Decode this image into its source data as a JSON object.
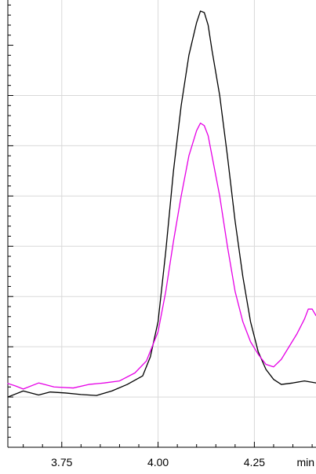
{
  "chart_data": {
    "type": "line",
    "title": "",
    "xlabel": "",
    "ylabel": "",
    "x_unit": "min",
    "xlim": [
      3.61,
      4.41
    ],
    "ylim": [
      0,
      0.89
    ],
    "x_ticks": [
      3.75,
      4.0,
      4.25
    ],
    "y_ticks": [
      0.1,
      0.2,
      0.3,
      0.4,
      0.5,
      0.6,
      0.7
    ],
    "grid": true,
    "legend": "none",
    "series": [
      {
        "color": "#000000",
        "points": [
          [
            3.61,
            0.1
          ],
          [
            3.65,
            0.112
          ],
          [
            3.69,
            0.104
          ],
          [
            3.72,
            0.11
          ],
          [
            3.76,
            0.108
          ],
          [
            3.8,
            0.105
          ],
          [
            3.84,
            0.103
          ],
          [
            3.88,
            0.112
          ],
          [
            3.92,
            0.125
          ],
          [
            3.96,
            0.142
          ],
          [
            3.98,
            0.18
          ],
          [
            4.0,
            0.25
          ],
          [
            4.02,
            0.39
          ],
          [
            4.04,
            0.55
          ],
          [
            4.06,
            0.68
          ],
          [
            4.08,
            0.78
          ],
          [
            4.1,
            0.845
          ],
          [
            4.11,
            0.868
          ],
          [
            4.12,
            0.865
          ],
          [
            4.13,
            0.84
          ],
          [
            4.14,
            0.79
          ],
          [
            4.16,
            0.7
          ],
          [
            4.18,
            0.58
          ],
          [
            4.2,
            0.45
          ],
          [
            4.22,
            0.34
          ],
          [
            4.24,
            0.25
          ],
          [
            4.26,
            0.19
          ],
          [
            4.28,
            0.155
          ],
          [
            4.3,
            0.135
          ],
          [
            4.32,
            0.125
          ],
          [
            4.35,
            0.128
          ],
          [
            4.38,
            0.132
          ],
          [
            4.41,
            0.128
          ]
        ]
      },
      {
        "color": "#e600e6",
        "points": [
          [
            3.61,
            0.127
          ],
          [
            3.63,
            0.122
          ],
          [
            3.65,
            0.116
          ],
          [
            3.69,
            0.128
          ],
          [
            3.73,
            0.12
          ],
          [
            3.78,
            0.118
          ],
          [
            3.82,
            0.125
          ],
          [
            3.86,
            0.128
          ],
          [
            3.9,
            0.132
          ],
          [
            3.94,
            0.148
          ],
          [
            3.97,
            0.172
          ],
          [
            4.0,
            0.23
          ],
          [
            4.02,
            0.31
          ],
          [
            4.04,
            0.41
          ],
          [
            4.06,
            0.5
          ],
          [
            4.08,
            0.58
          ],
          [
            4.1,
            0.63
          ],
          [
            4.11,
            0.645
          ],
          [
            4.12,
            0.64
          ],
          [
            4.13,
            0.62
          ],
          [
            4.14,
            0.58
          ],
          [
            4.16,
            0.5
          ],
          [
            4.18,
            0.4
          ],
          [
            4.2,
            0.31
          ],
          [
            4.22,
            0.25
          ],
          [
            4.24,
            0.21
          ],
          [
            4.26,
            0.185
          ],
          [
            4.28,
            0.165
          ],
          [
            4.3,
            0.16
          ],
          [
            4.32,
            0.175
          ],
          [
            4.34,
            0.2
          ],
          [
            4.36,
            0.225
          ],
          [
            4.38,
            0.255
          ],
          [
            4.39,
            0.275
          ],
          [
            4.4,
            0.275
          ],
          [
            4.41,
            0.262
          ]
        ]
      }
    ]
  }
}
